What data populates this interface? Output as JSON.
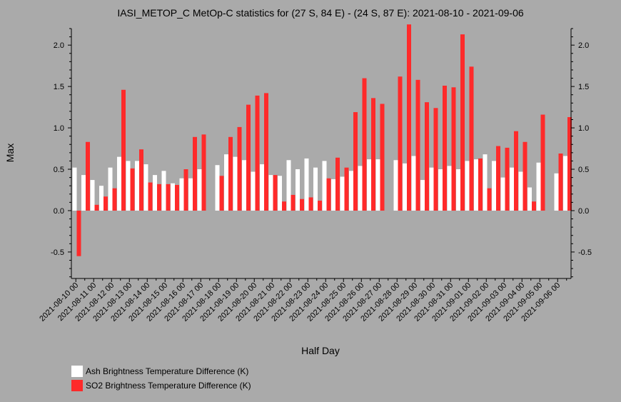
{
  "chart_data": {
    "type": "bar",
    "title": "IASI_METOP_C MetOp-C statistics for (27 S, 84 E) - (24 S, 87 E): 2021-08-10 - 2021-09-06",
    "xlabel": "Half Day",
    "ylabel": "Max",
    "ylim": [
      -0.82,
      2.2
    ],
    "yticks": [
      -0.5,
      0.0,
      0.5,
      1.0,
      1.5,
      2.0
    ],
    "ytick_labels": [
      "-0.5",
      "0.0",
      "0.5",
      "1.0",
      "1.5",
      "2.0"
    ],
    "xtick_labels": [
      "2021-08-10 00",
      "2021-08-11 00",
      "2021-08-12 00",
      "2021-08-13 00",
      "2021-08-14 00",
      "2021-08-15 00",
      "2021-08-16 00",
      "2021-08-17 00",
      "2021-08-18 00",
      "2021-08-19 00",
      "2021-08-20 00",
      "2021-08-21 00",
      "2021-08-22 00",
      "2021-08-23 00",
      "2021-08-24 00",
      "2021-08-25 00",
      "2021-08-26 00",
      "2021-08-27 00",
      "2021-08-28 00",
      "2021-08-29 00",
      "2021-08-30 00",
      "2021-08-31 00",
      "2021-09-01 00",
      "2021-09-02 00",
      "2021-09-03 00",
      "2021-09-04 00",
      "2021-09-05 00",
      "2021-09-06 00"
    ],
    "series": [
      {
        "name": "Ash Brightness Temperature Difference (K)",
        "color": "#ffffff",
        "values": [
          0.52,
          0.43,
          0.37,
          0.3,
          0.52,
          0.65,
          0.6,
          0.6,
          0.56,
          0.43,
          0.48,
          0.33,
          0.39,
          0.39,
          0.5,
          null,
          0.55,
          0.68,
          0.65,
          0.61,
          0.47,
          0.56,
          0.43,
          0.42,
          0.61,
          0.5,
          0.63,
          0.52,
          0.6,
          0.38,
          0.41,
          0.48,
          0.54,
          0.62,
          0.62,
          null,
          0.61,
          0.57,
          0.66,
          0.37,
          0.52,
          0.5,
          0.54,
          0.5,
          0.6,
          0.62,
          0.68,
          0.6,
          0.4,
          0.52,
          0.47,
          0.28,
          0.58,
          null,
          0.45,
          0.66
        ]
      },
      {
        "name": "SO2 Brightness Temperature Difference (K)",
        "color": "#ff2a2a",
        "values": [
          -0.55,
          0.83,
          0.07,
          0.17,
          0.27,
          1.46,
          0.51,
          0.74,
          0.34,
          0.32,
          0.32,
          0.31,
          0.5,
          0.89,
          0.92,
          null,
          0.42,
          0.89,
          1.01,
          1.28,
          1.39,
          1.42,
          0.43,
          0.11,
          0.19,
          0.14,
          0.16,
          0.12,
          0.39,
          0.64,
          0.52,
          1.19,
          1.6,
          1.36,
          1.29,
          null,
          1.62,
          2.25,
          1.58,
          1.31,
          1.24,
          1.51,
          1.49,
          2.13,
          1.74,
          0.63,
          0.27,
          0.78,
          0.76,
          0.96,
          0.83,
          0.11,
          1.16,
          null,
          0.69,
          1.13
        ]
      }
    ],
    "legend_position": "bottom-left",
    "grid": false
  }
}
